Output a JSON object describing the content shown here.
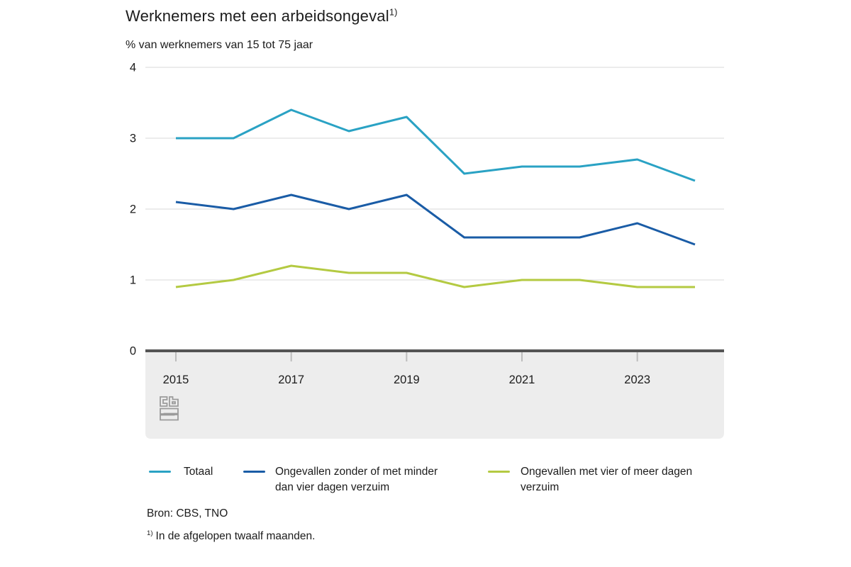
{
  "header": {
    "title": "Werknemers met een arbeidsongeval",
    "title_footnote_marker": "1)",
    "subtitle": "% van werknemers van 15 tot 75 jaar"
  },
  "chart_data": {
    "type": "line",
    "x": [
      2015,
      2016,
      2017,
      2018,
      2019,
      2020,
      2021,
      2022,
      2023,
      2024
    ],
    "series": [
      {
        "name": "Totaal",
        "color": "#2AA2C4",
        "values": [
          3.0,
          3.0,
          3.4,
          3.1,
          3.3,
          2.5,
          2.6,
          2.6,
          2.7,
          2.4
        ]
      },
      {
        "name": "Ongevallen zonder of met minder dan vier dagen verzuim",
        "color": "#1A5CA6",
        "values": [
          2.1,
          2.0,
          2.2,
          2.0,
          2.2,
          1.6,
          1.6,
          1.6,
          1.8,
          1.5
        ]
      },
      {
        "name": "Ongevallen met vier of meer dagen verzuim",
        "color": "#B4CA42",
        "values": [
          0.9,
          1.0,
          1.2,
          1.1,
          1.1,
          0.9,
          1.0,
          1.0,
          0.9,
          0.9
        ]
      }
    ],
    "title": "Werknemers met een arbeidsongeval 1)",
    "xlabel": "",
    "ylabel": "% van werknemers van 15 tot 75 jaar",
    "ylim": [
      0,
      4
    ],
    "y_ticks": [
      0,
      1,
      2,
      3,
      4
    ],
    "x_tick_labels": [
      "2015",
      "2017",
      "2019",
      "2021",
      "2023"
    ],
    "grid": true,
    "legend_position": "bottom"
  },
  "legend": {
    "items": [
      {
        "label": "Totaal"
      },
      {
        "label": "Ongevallen zonder of met minder dan vier dagen verzuim"
      },
      {
        "label": "Ongevallen met vier of meer dagen verzuim"
      }
    ]
  },
  "footer": {
    "source": "Bron: CBS, TNO",
    "footnote_marker": "1)",
    "footnote_text": "In de afgelopen twaalf maanden."
  },
  "logo": {
    "name": "CBS"
  },
  "theme": {
    "grid_color": "#d9d9d9",
    "axis_color": "#545454",
    "tick_color": "#bdbdbd",
    "band_color": "#ededed",
    "text_color": "#1c1c1c",
    "logo_color": "#9b9b9b"
  }
}
